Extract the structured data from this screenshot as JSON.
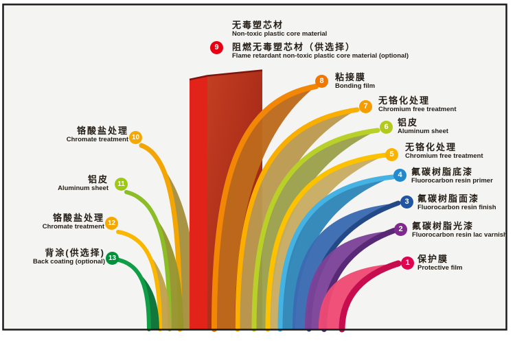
{
  "frame": {
    "bg": "#f4f4f2",
    "border": "#1a1a1a"
  },
  "core": {
    "number": "9",
    "circle_color": "#e60012",
    "alt_zh": "无毒塑芯材",
    "alt_en": "Non-toxic plastic core material",
    "zh": "阻燃无毒塑芯材（供选择）",
    "en": "Flame retardant non-toxic plastic core material (optional)",
    "side_face_color": "#e2231a",
    "front_top_color": "#c43f22",
    "front_bottom_color": "#971e11",
    "top_edge_color": "#7c150c"
  },
  "layers_right": [
    {
      "number": "8",
      "zh": "粘接膜",
      "en": "Bonding film",
      "circle": "#f07800",
      "edge": "#f28705",
      "face": "#bc6a1b"
    },
    {
      "number": "7",
      "zh": "无铬化处理",
      "en": "Chromium free treatment",
      "circle": "#f59c00",
      "edge": "#f9ae00",
      "face": "#bb9a50"
    },
    {
      "number": "6",
      "zh": "铝皮",
      "en": "Aluminum sheet",
      "circle": "#b3c91e",
      "edge": "#b9d029",
      "face": "#9aa04a"
    },
    {
      "number": "5",
      "zh": "无铬化处理",
      "en": "Chromium free treatment",
      "circle": "#fbb300",
      "edge": "#fcc200",
      "face": "#c7ac62"
    },
    {
      "number": "4",
      "zh": "氟碳树脂底漆",
      "en": "Fluorocarbon resin primer",
      "circle": "#2289cc",
      "edge": "#45b2e4",
      "face": "#2f86b8"
    },
    {
      "number": "3",
      "zh": "氟碳树脂面漆",
      "en": "Fluorocarbon resin finish",
      "circle": "#2155a4",
      "edge": "#234a86",
      "face": "#3a6ab2"
    },
    {
      "number": "2",
      "zh": "氟碳树脂光漆",
      "en": "Fluorocarbon resin lac varnish",
      "circle": "#7d2a8c",
      "edge": "#582a75",
      "face": "#7c4398"
    },
    {
      "number": "1",
      "zh": "保护膜",
      "en": "Protective film",
      "circle": "#e00050",
      "edge": "#c60d4d",
      "face": "#ee4a74"
    }
  ],
  "layers_left": [
    {
      "number": "10",
      "zh": "铬酸盐处理",
      "en": "Chromate treatment",
      "circle": "#f5a800",
      "edge": "#f3a503",
      "face": "#a5903e"
    },
    {
      "number": "11",
      "zh": "铝皮",
      "en": "Aluminum sheet",
      "circle": "#9dc814",
      "edge": "#8abd26",
      "face": "#95942c"
    },
    {
      "number": "12",
      "zh": "铬酸盐处理",
      "en": "Chromate treatment",
      "circle": "#f5a800",
      "edge": "#fbb700",
      "face": "#bfa14a"
    },
    {
      "number": "13",
      "zh": "背涂(供选择)",
      "en": "Back coating (optional)",
      "circle": "#00913a",
      "edge": "#0f9d45",
      "face": "#087134"
    }
  ]
}
